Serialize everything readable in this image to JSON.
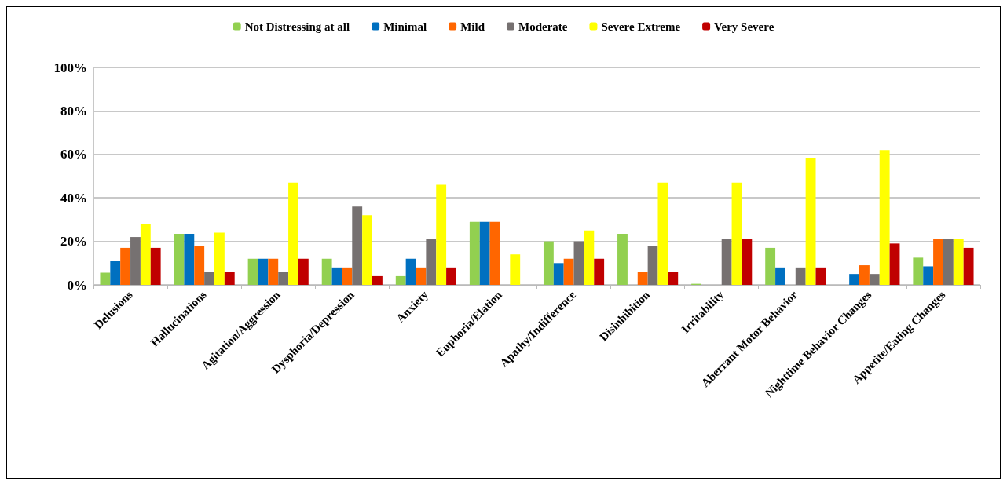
{
  "chart_data": {
    "type": "bar",
    "categories": [
      "Delusions",
      "Hallucinations",
      "Agitation/Aggression",
      "Dysphoria/Depression",
      "Anxiety",
      "Euphoria/Elation",
      "Apathy/Indifference",
      "Disinhibition",
      "Irritability",
      "Aberrant Motor Behavior",
      "Nighttime Behavior Changes",
      "Appetite/Eating Changes"
    ],
    "series": [
      {
        "name": "Not Distressing at all",
        "color": "#92d050",
        "values": [
          5.6,
          23.5,
          12,
          12,
          4,
          29,
          20,
          23.5,
          0.5,
          17,
          0,
          12.5
        ]
      },
      {
        "name": "Minimal",
        "color": "#0070c0",
        "values": [
          11,
          23.5,
          12,
          8,
          12,
          29,
          10,
          0,
          0,
          8,
          5,
          8.5
        ]
      },
      {
        "name": "Mild",
        "color": "#ff6600",
        "values": [
          17,
          18,
          12,
          8,
          8,
          29,
          12,
          6,
          0,
          0,
          9,
          21
        ]
      },
      {
        "name": "Moderate",
        "color": "#767171",
        "values": [
          22,
          6,
          6,
          36,
          21,
          0,
          20,
          18,
          21,
          8,
          5,
          21
        ]
      },
      {
        "name": "Severe Extreme",
        "color": "#ffff00",
        "values": [
          28,
          24,
          47,
          32,
          46,
          14,
          25,
          47,
          47,
          58.5,
          62,
          21
        ]
      },
      {
        "name": "Very Severe",
        "color": "#c00000",
        "values": [
          17,
          6,
          12,
          4,
          8,
          0,
          12,
          6,
          21,
          8,
          19,
          17
        ]
      }
    ],
    "ylim": [
      0,
      100
    ],
    "yticks": [
      {
        "value": 0,
        "label": "0%"
      },
      {
        "value": 20,
        "label": "20%"
      },
      {
        "value": 40,
        "label": "40%"
      },
      {
        "value": 60,
        "label": "60%"
      },
      {
        "value": 80,
        "label": "80%"
      },
      {
        "value": 100,
        "label": "100%"
      }
    ],
    "grid": "y",
    "legend": "top"
  }
}
